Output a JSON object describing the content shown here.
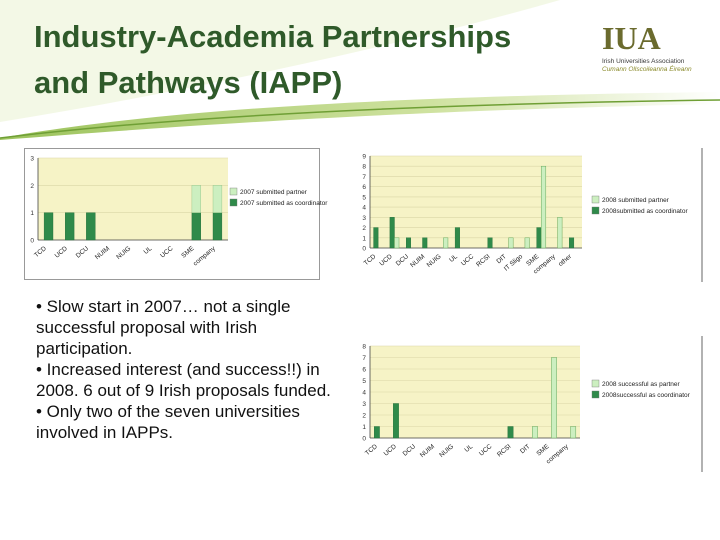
{
  "slide": {
    "title_line1": "Industry-Academia Partnerships",
    "title_line2": "and Pathways (IAPP)",
    "bullets": [
      "• Slow start in 2007… not a single successful proposal with Irish participation.",
      "• Increased interest (and success!!) in 2008. 6 out of 9 Irish proposals funded.",
      "• Only two of the seven universities involved in IAPPs."
    ]
  },
  "logo": {
    "mark": "IUA",
    "name": "Irish Universities Association",
    "name_irish": "Cumann Ollscoileanna Éireann"
  },
  "colors": {
    "title": "#2f5a2a",
    "partner": "#ccefc0",
    "coordinator": "#2f8a4a",
    "plot_bg": "#f6f3c6",
    "header_swoosh": "#b3d07a"
  },
  "chart_data": [
    {
      "type": "bar",
      "categories": [
        "TCD",
        "UCD",
        "DCU",
        "NUIM",
        "NUIG",
        "UL",
        "UCC",
        "SME",
        "company"
      ],
      "series": [
        {
          "name": "2007 submitted partner",
          "values": [
            0,
            0,
            0,
            0,
            0,
            0,
            0,
            1,
            1
          ]
        },
        {
          "name": "2007 submitted as coordinator",
          "values": [
            1,
            1,
            1,
            0,
            0,
            0,
            0,
            1,
            1
          ]
        }
      ],
      "ylim": [
        0,
        3
      ],
      "yticks": [
        0,
        1,
        2,
        3
      ],
      "legend": "right",
      "stacked": true
    },
    {
      "type": "bar",
      "categories": [
        "TCD",
        "UCD",
        "DCU",
        "NUIM",
        "NUIG",
        "UL",
        "UCC",
        "RCSI",
        "DIT",
        "IT Sligo",
        "SME",
        "company",
        "other"
      ],
      "series": [
        {
          "name": "2008 submitted partner",
          "values": [
            0,
            1,
            0,
            0,
            1,
            0,
            0,
            0,
            1,
            1,
            8,
            3,
            0
          ]
        },
        {
          "name": "2008submitted as coordinator",
          "values": [
            2,
            3,
            1,
            1,
            0,
            2,
            0,
            1,
            0,
            0,
            2,
            0,
            1
          ]
        }
      ],
      "ylim": [
        0,
        9
      ],
      "yticks": [
        0,
        1,
        2,
        3,
        4,
        5,
        6,
        7,
        8,
        9
      ],
      "legend": "right",
      "stacked": false
    },
    {
      "type": "bar",
      "categories": [
        "TCD",
        "UCD",
        "DCU",
        "NUIM",
        "NUIG",
        "UL",
        "UCC",
        "RCSI",
        "DIT",
        "SME",
        "company"
      ],
      "series": [
        {
          "name": "2008 successful as partner",
          "values": [
            0,
            0,
            0,
            0,
            0,
            0,
            0,
            0,
            1,
            7,
            1
          ]
        },
        {
          "name": "2008successful as coordinator",
          "values": [
            1,
            3,
            0,
            0,
            0,
            0,
            0,
            1,
            0,
            0,
            0
          ]
        }
      ],
      "ylim": [
        0,
        8
      ],
      "yticks": [
        0,
        1,
        2,
        3,
        4,
        5,
        6,
        7,
        8
      ],
      "legend": "right",
      "stacked": false
    }
  ]
}
